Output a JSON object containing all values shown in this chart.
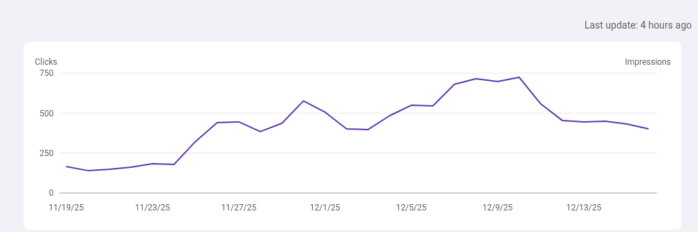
{
  "chart_data": {
    "type": "line",
    "ylabel": "Clicks",
    "y2label": "Impressions",
    "annotations": [
      "Last update: 4 hours ago"
    ],
    "categories": [
      "11/19/25",
      null,
      null,
      null,
      "11/23/25",
      null,
      null,
      null,
      "11/27/25",
      null,
      null,
      null,
      "12/1/25",
      null,
      null,
      null,
      "12/5/25",
      null,
      null,
      null,
      "12/9/25",
      null,
      null,
      null,
      "12/13/25",
      null,
      null,
      null
    ],
    "series": [
      {
        "color": "#5e35b1",
        "values": [
          166,
          140,
          148,
          161,
          183,
          179,
          323,
          440,
          445,
          384,
          436,
          576,
          506,
          401,
          397,
          484,
          549,
          545,
          680,
          715,
          698,
          724,
          558,
          454,
          445,
          449,
          432,
          401
        ]
      }
    ],
    "ylim": [
      0,
      750
    ],
    "yticks": [
      0,
      250,
      500,
      750
    ],
    "grid": "y",
    "marker": "none",
    "line_style": "solid"
  }
}
